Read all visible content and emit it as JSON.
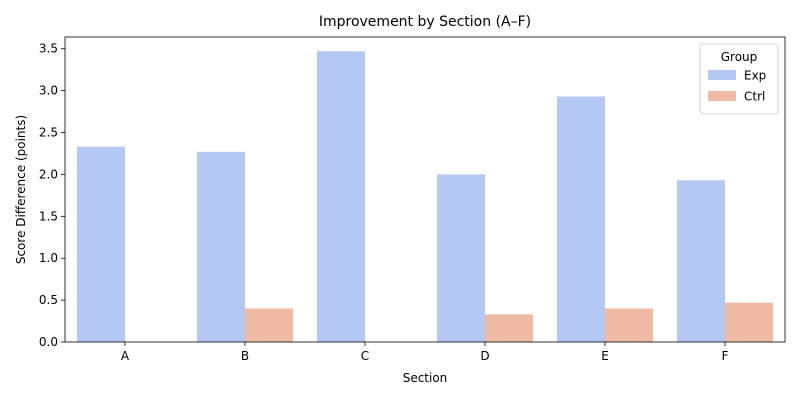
{
  "chart_data": {
    "type": "bar",
    "title": "Improvement by Section (A–F)",
    "xlabel": "Section",
    "ylabel": "Score Difference (points)",
    "categories": [
      "A",
      "B",
      "C",
      "D",
      "E",
      "F"
    ],
    "series": [
      {
        "name": "Exp",
        "color": "#b3c9f4",
        "values": [
          2.33,
          2.27,
          3.47,
          2.0,
          2.93,
          1.93
        ]
      },
      {
        "name": "Ctrl",
        "color": "#efbba4",
        "values": [
          0.0,
          0.4,
          0.0,
          0.33,
          0.4,
          0.47
        ]
      }
    ],
    "ylim": [
      0,
      3.64
    ],
    "yticks": [
      "0.0",
      "0.5",
      "1.0",
      "1.5",
      "2.0",
      "2.5",
      "3.0",
      "3.5"
    ],
    "grid": false,
    "legend": {
      "title": "Group",
      "placement": "top-right"
    }
  }
}
